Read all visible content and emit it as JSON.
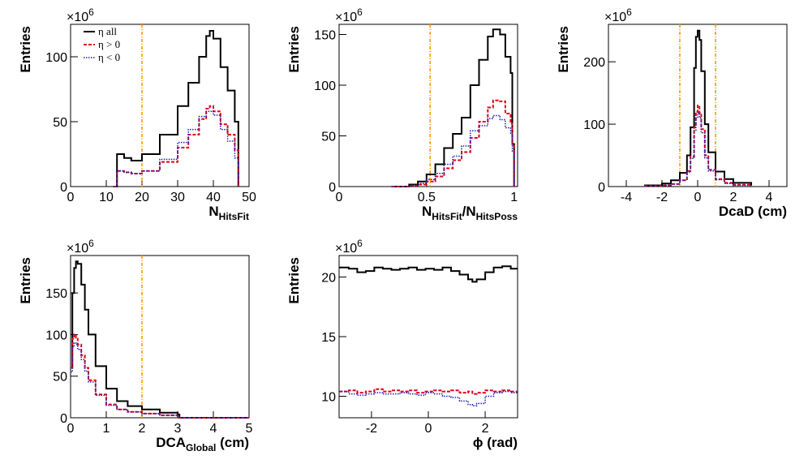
{
  "colors": {
    "all": "#000000",
    "pos": "#e3001b",
    "neg": "#1c1cb4",
    "cut": "#ff9900"
  },
  "chart_data": [
    {
      "id": "nhitsfit",
      "type": "line",
      "multiplier": "×10",
      "multiplier_exp": "6",
      "ylabel": "Entries",
      "xlabel_main": "N",
      "xlabel_sub": "HitsFit",
      "xlim": [
        0,
        50
      ],
      "ylim": [
        0,
        125
      ],
      "xticks": [
        0,
        10,
        20,
        30,
        40,
        50
      ],
      "yticks": [
        0,
        50,
        100
      ],
      "cuts": [
        20
      ],
      "legend": {
        "all": "η all",
        "pos": "η > 0",
        "neg": "η < 0"
      },
      "series": [
        {
          "key": "all",
          "x": [
            12,
            13,
            15,
            17,
            20,
            25,
            30,
            33,
            36,
            38,
            39,
            40,
            42,
            44,
            46,
            47
          ],
          "y": [
            0,
            25,
            22,
            20,
            25,
            40,
            62,
            80,
            100,
            116,
            120,
            114,
            92,
            74,
            50,
            0
          ]
        },
        {
          "key": "pos",
          "x": [
            12,
            13,
            15,
            17,
            20,
            25,
            30,
            33,
            36,
            38,
            39,
            40,
            42,
            44,
            46,
            47
          ],
          "y": [
            0,
            12,
            11,
            10,
            12,
            19,
            30,
            40,
            52,
            60,
            62,
            58,
            48,
            40,
            28,
            0
          ]
        },
        {
          "key": "neg",
          "x": [
            12,
            13,
            15,
            17,
            20,
            25,
            30,
            33,
            36,
            38,
            39,
            40,
            42,
            44,
            46,
            47
          ],
          "y": [
            0,
            12,
            11,
            10,
            12,
            21,
            34,
            44,
            54,
            58,
            58,
            55,
            44,
            35,
            22,
            0
          ]
        }
      ]
    },
    {
      "id": "ratio",
      "type": "line",
      "multiplier": "×10",
      "multiplier_exp": "6",
      "ylabel": "Entries",
      "xlabel_main": "N",
      "xlabel_sub": "HitsFit",
      "xlabel_mid": "/N",
      "xlabel_sub2": "HitsPoss",
      "xlim": [
        0,
        1.02
      ],
      "ylim": [
        0,
        160
      ],
      "xticks": [
        0,
        0.5,
        1
      ],
      "yticks": [
        0,
        50,
        100,
        150
      ],
      "cuts": [
        0.52
      ],
      "series": [
        {
          "key": "all",
          "x": [
            0.3,
            0.4,
            0.45,
            0.5,
            0.55,
            0.6,
            0.65,
            0.7,
            0.75,
            0.8,
            0.85,
            0.88,
            0.92,
            0.95,
            0.98,
            0.99,
            1.0
          ],
          "y": [
            0,
            2,
            5,
            12,
            22,
            38,
            52,
            68,
            100,
            125,
            148,
            155,
            150,
            128,
            112,
            42,
            0
          ]
        },
        {
          "key": "pos",
          "x": [
            0.3,
            0.4,
            0.45,
            0.5,
            0.55,
            0.6,
            0.65,
            0.7,
            0.75,
            0.8,
            0.85,
            0.88,
            0.92,
            0.95,
            0.98,
            0.99,
            1.0
          ],
          "y": [
            0,
            1,
            2,
            5,
            10,
            18,
            26,
            34,
            48,
            64,
            78,
            85,
            84,
            72,
            62,
            40,
            0
          ]
        },
        {
          "key": "neg",
          "x": [
            0.3,
            0.4,
            0.45,
            0.5,
            0.55,
            0.6,
            0.65,
            0.7,
            0.75,
            0.8,
            0.85,
            0.88,
            0.92,
            0.95,
            0.98,
            0.99,
            1.0
          ],
          "y": [
            0,
            1,
            3,
            7,
            13,
            22,
            30,
            40,
            55,
            60,
            67,
            70,
            66,
            58,
            52,
            35,
            0
          ]
        }
      ]
    },
    {
      "id": "dcad",
      "type": "line",
      "multiplier": "×10",
      "multiplier_exp": "6",
      "ylabel": "Entries",
      "xlabel_main": "DcaD (cm)",
      "xlim": [
        -5,
        5
      ],
      "ylim": [
        0,
        260
      ],
      "xticks": [
        -4,
        -2,
        0,
        2,
        4
      ],
      "yticks": [
        0,
        100,
        200
      ],
      "cuts": [
        -1,
        1
      ],
      "series": [
        {
          "key": "all",
          "x": [
            -3,
            -2,
            -1.5,
            -1,
            -0.6,
            -0.4,
            -0.2,
            -0.1,
            0,
            0.1,
            0.2,
            0.4,
            0.6,
            1,
            1.5,
            2,
            3
          ],
          "y": [
            2,
            5,
            10,
            22,
            50,
            95,
            190,
            240,
            250,
            235,
            185,
            100,
            55,
            24,
            12,
            6,
            2
          ]
        },
        {
          "key": "pos",
          "x": [
            -3,
            -2,
            -1.5,
            -1,
            -0.6,
            -0.4,
            -0.2,
            -0.1,
            0,
            0.1,
            0.2,
            0.4,
            0.6,
            1,
            1.5,
            2,
            3
          ],
          "y": [
            1,
            2,
            4,
            10,
            25,
            48,
            95,
            120,
            130,
            118,
            92,
            50,
            27,
            12,
            6,
            3,
            1
          ]
        },
        {
          "key": "neg",
          "x": [
            -3,
            -2,
            -1.5,
            -1,
            -0.6,
            -0.4,
            -0.2,
            -0.1,
            0,
            0.1,
            0.2,
            0.4,
            0.6,
            1,
            1.5,
            2,
            3
          ],
          "y": [
            1,
            2,
            4,
            10,
            23,
            45,
            90,
            110,
            118,
            110,
            86,
            46,
            25,
            11,
            5,
            2,
            1
          ]
        }
      ]
    },
    {
      "id": "dcaglobal",
      "type": "line",
      "multiplier": "×10",
      "multiplier_exp": "6",
      "ylabel": "Entries",
      "xlabel_main": "DCA",
      "xlabel_sub": "Global",
      "xlabel_after": " (cm)",
      "xlim": [
        0,
        5
      ],
      "ylim": [
        0,
        195
      ],
      "xticks": [
        0,
        1,
        2,
        3,
        4,
        5
      ],
      "yticks": [
        0,
        50,
        100,
        150
      ],
      "cuts": [
        2
      ],
      "series": [
        {
          "key": "all",
          "x": [
            0,
            0.05,
            0.1,
            0.15,
            0.2,
            0.3,
            0.4,
            0.5,
            0.7,
            1,
            1.3,
            1.6,
            2,
            2.5,
            3,
            3.05,
            4,
            5
          ],
          "y": [
            60,
            150,
            180,
            188,
            185,
            160,
            130,
            100,
            62,
            35,
            20,
            14,
            10,
            6,
            4,
            0,
            0,
            0
          ]
        },
        {
          "key": "pos",
          "x": [
            0,
            0.05,
            0.1,
            0.15,
            0.2,
            0.3,
            0.4,
            0.5,
            0.7,
            1,
            1.3,
            1.6,
            2,
            2.5,
            3,
            3.05,
            4,
            5
          ],
          "y": [
            60,
            95,
            100,
            96,
            88,
            75,
            60,
            45,
            28,
            16,
            10,
            7,
            5,
            3,
            2,
            0,
            0,
            0
          ]
        },
        {
          "key": "neg",
          "x": [
            0,
            0.05,
            0.1,
            0.15,
            0.2,
            0.3,
            0.4,
            0.5,
            0.7,
            1,
            1.3,
            1.6,
            2,
            2.5,
            3,
            3.05,
            4,
            5
          ],
          "y": [
            55,
            85,
            90,
            88,
            82,
            70,
            56,
            43,
            27,
            15,
            10,
            7,
            5,
            3,
            2,
            0,
            0,
            0
          ]
        }
      ]
    },
    {
      "id": "phi",
      "type": "line",
      "multiplier": "×10",
      "multiplier_exp": "6",
      "ylabel": "Entries",
      "xlabel_main": "ϕ (rad)",
      "xlim": [
        -3.14,
        3.14
      ],
      "ylim": [
        8.2,
        21.8
      ],
      "xticks": [
        -2,
        0,
        2
      ],
      "yticks": [
        10,
        15,
        20
      ],
      "cuts": [],
      "series": [
        {
          "key": "all",
          "x": [
            -3.14,
            -2.8,
            -2.5,
            -2.2,
            -1.9,
            -1.6,
            -1.3,
            -1.0,
            -0.7,
            -0.4,
            -0.1,
            0.2,
            0.5,
            0.8,
            1.1,
            1.4,
            1.55,
            1.7,
            2.0,
            2.3,
            2.6,
            2.9,
            3.14
          ],
          "y": [
            20.8,
            20.7,
            20.4,
            20.5,
            20.8,
            20.7,
            20.6,
            20.7,
            20.8,
            20.6,
            20.7,
            20.6,
            20.8,
            20.5,
            20.2,
            19.8,
            19.6,
            19.8,
            20.4,
            20.8,
            20.9,
            20.7,
            20.7
          ]
        },
        {
          "key": "pos",
          "x": [
            -3.14,
            -2.8,
            -2.5,
            -2.2,
            -1.9,
            -1.6,
            -1.3,
            -1.0,
            -0.7,
            -0.4,
            -0.1,
            0.2,
            0.5,
            0.8,
            1.1,
            1.4,
            1.55,
            1.7,
            2.0,
            2.3,
            2.6,
            2.9,
            3.14
          ],
          "y": [
            10.4,
            10.5,
            10.3,
            10.4,
            10.6,
            10.4,
            10.5,
            10.4,
            10.5,
            10.3,
            10.4,
            10.5,
            10.4,
            10.5,
            10.3,
            10.4,
            10.2,
            10.3,
            10.5,
            10.4,
            10.5,
            10.4,
            10.4
          ]
        },
        {
          "key": "neg",
          "x": [
            -3.14,
            -2.8,
            -2.5,
            -2.2,
            -1.9,
            -1.6,
            -1.3,
            -1.0,
            -0.7,
            -0.4,
            -0.1,
            0.2,
            0.5,
            0.8,
            1.1,
            1.4,
            1.55,
            1.7,
            2.0,
            2.3,
            2.6,
            2.9,
            3.14
          ],
          "y": [
            10.4,
            10.2,
            10.1,
            10.2,
            10.3,
            10.2,
            10.2,
            10.3,
            10.2,
            10.1,
            10.3,
            10.2,
            10.0,
            9.9,
            9.6,
            9.3,
            9.2,
            9.4,
            10.0,
            10.3,
            10.4,
            10.3,
            10.4
          ]
        }
      ]
    }
  ]
}
